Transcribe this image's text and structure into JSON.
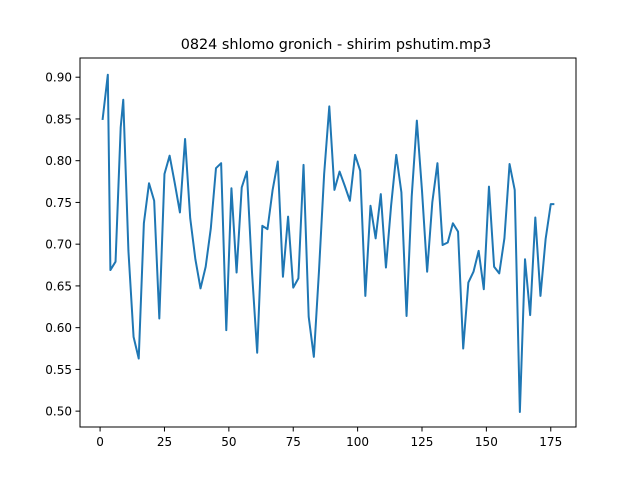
{
  "chart_data": {
    "type": "line",
    "title": "0824 shlomo gronich - shirim pshutim.mp3",
    "xlabel": "",
    "ylabel": "",
    "xlim": [
      -7.8,
      184.8
    ],
    "ylim": [
      0.481,
      0.923
    ],
    "x_ticks": [
      0,
      25,
      50,
      75,
      100,
      125,
      150,
      175
    ],
    "y_ticks": [
      0.5,
      0.55,
      0.6,
      0.65,
      0.7,
      0.75,
      0.8,
      0.85,
      0.9
    ],
    "y_tick_labels": [
      "0.50",
      "0.55",
      "0.60",
      "0.65",
      "0.70",
      "0.75",
      "0.80",
      "0.85",
      "0.90"
    ],
    "grid": false,
    "legend": "none",
    "line_color": "#1f77b4",
    "series": [
      {
        "x": [
          1,
          3,
          4,
          6,
          8,
          9,
          11,
          13,
          15,
          17,
          19,
          21,
          23,
          25,
          27,
          29,
          31,
          33,
          35,
          37,
          39,
          41,
          43,
          45,
          47,
          49,
          51,
          53,
          55,
          57,
          59,
          61,
          63,
          65,
          67,
          69,
          71,
          73,
          75,
          77,
          79,
          81,
          83,
          85,
          87,
          89,
          91,
          93,
          95,
          97,
          99,
          101,
          103,
          105,
          107,
          109,
          111,
          113,
          115,
          117,
          119,
          121,
          123,
          125,
          127,
          129,
          131,
          133,
          135,
          137,
          139,
          141,
          143,
          145,
          147,
          149,
          151,
          153,
          155,
          157,
          159,
          161,
          163,
          165,
          167,
          169,
          171,
          173,
          175,
          176
        ],
        "values": [
          0.85,
          0.903,
          0.669,
          0.679,
          0.84,
          0.873,
          0.692,
          0.589,
          0.563,
          0.725,
          0.773,
          0.752,
          0.611,
          0.784,
          0.806,
          0.773,
          0.738,
          0.826,
          0.731,
          0.682,
          0.647,
          0.673,
          0.719,
          0.791,
          0.797,
          0.597,
          0.767,
          0.666,
          0.768,
          0.787,
          0.666,
          0.57,
          0.722,
          0.718,
          0.765,
          0.799,
          0.661,
          0.733,
          0.648,
          0.659,
          0.795,
          0.613,
          0.565,
          0.668,
          0.784,
          0.865,
          0.765,
          0.787,
          0.77,
          0.752,
          0.807,
          0.788,
          0.638,
          0.746,
          0.707,
          0.76,
          0.672,
          0.746,
          0.807,
          0.762,
          0.614,
          0.757,
          0.848,
          0.764,
          0.667,
          0.75,
          0.797,
          0.699,
          0.702,
          0.725,
          0.715,
          0.575,
          0.654,
          0.667,
          0.692,
          0.646,
          0.769,
          0.673,
          0.665,
          0.707,
          0.796,
          0.765,
          0.499,
          0.682,
          0.615,
          0.732,
          0.638,
          0.706,
          0.748,
          0.748
        ]
      }
    ]
  }
}
